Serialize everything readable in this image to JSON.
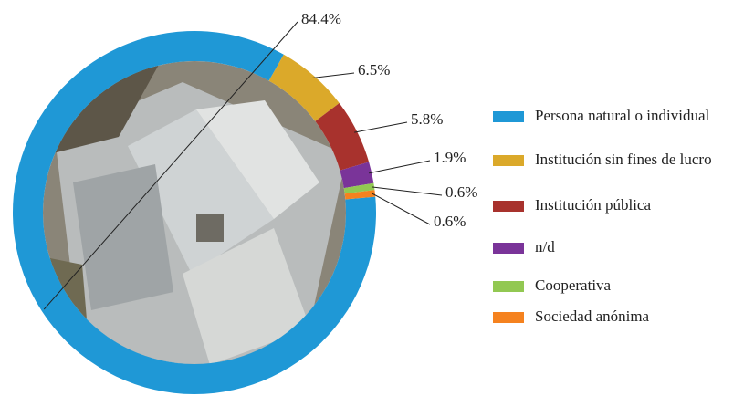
{
  "chart_data": {
    "type": "donut",
    "categories": [
      "Persona natural o individual",
      "Institución sin fines de lucro",
      "Institución pública",
      "n/d",
      "Cooperativa",
      "Sociedad anónima"
    ],
    "values": [
      84.4,
      6.5,
      5.8,
      1.9,
      0.6,
      0.6
    ],
    "value_labels": [
      "84.4%",
      "6.5%",
      "5.8%",
      "1.9%",
      "0.6%",
      "0.6%"
    ],
    "colors": [
      "#1f98d6",
      "#dba92a",
      "#a8322d",
      "#7a3499",
      "#92c852",
      "#f5821f"
    ],
    "legend": "right"
  }
}
